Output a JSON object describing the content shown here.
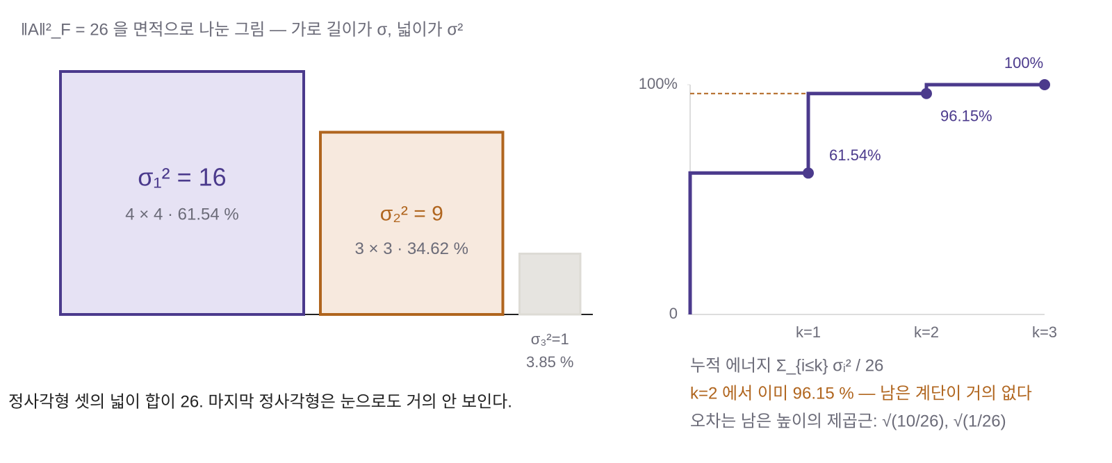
{
  "title": "‖A‖²_F = 26 을 면적으로 나눈 그림 — 가로 길이가 σ, 넓이가 σ²",
  "squares": [
    {
      "label": "σ₁² = 16",
      "detail": "4 × 4 · 61.54 %",
      "side": 4,
      "color": "#4b3a8c",
      "fill": "#e6e2f4"
    },
    {
      "label": "σ₂² = 9",
      "detail": "3 × 3 · 34.62 %",
      "side": 3,
      "color": "#b0651e",
      "fill": "#f7e9de"
    },
    {
      "label": "σ₃²=1",
      "detail": "3.85 %",
      "side": 1,
      "color": "#dddbd5",
      "fill": "#e6e4e0"
    }
  ],
  "caption": "정사각형 셋의 넓이 합이 26. 마지막 정사각형은 눈으로도 거의 안 보인다.",
  "chart_data": {
    "type": "step",
    "categories": [
      "k=1",
      "k=2",
      "k=3"
    ],
    "values": [
      61.54,
      96.15,
      100
    ],
    "value_labels": [
      "61.54%",
      "96.15%",
      "100%"
    ],
    "color": "#4b3a8c",
    "reference": {
      "value": 96.15,
      "color": "#b0651e"
    },
    "ylim": [
      0,
      100
    ],
    "yticks": [
      0,
      {
        "value": 100,
        "label": "100%"
      }
    ],
    "notes": [
      "누적 에너지 Σ_{i≤k} σᵢ² / 26",
      "k=2 에서 이미 96.15 % — 남은 계단이 거의 없다",
      "오차는 남은 높이의 제곱근: √(10/26), √(1/26)"
    ]
  }
}
